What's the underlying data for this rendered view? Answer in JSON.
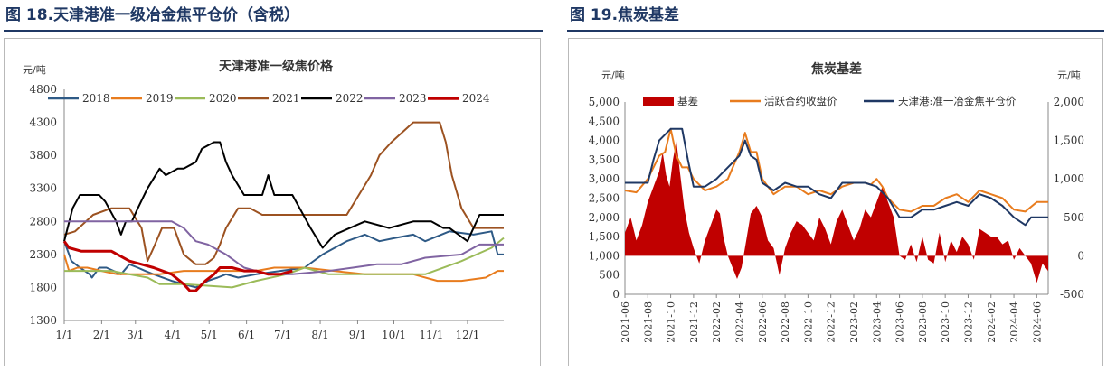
{
  "figure_left_title": "图 18.天津港准一级冶金焦平仓价（含税）",
  "figure_right_title": "图 19.焦炭基差",
  "chart_data": [
    {
      "type": "line",
      "title": "天津港准一级焦价格",
      "ylabel": "元/吨",
      "ylim": [
        1300,
        4800
      ],
      "yticks": [
        1300,
        1800,
        2300,
        2800,
        3300,
        3800,
        4300,
        4800
      ],
      "xticks": [
        "1/1",
        "2/1",
        "3/1",
        "4/1",
        "5/1",
        "6/1",
        "7/1",
        "8/1",
        "9/1",
        "10/1",
        "11/1",
        "12/1"
      ],
      "legend_position": "top",
      "series": [
        {
          "name": "2018",
          "color": "#2e5a86",
          "x": [
            1,
            7,
            14,
            18,
            22,
            24,
            30,
            36,
            42,
            48,
            55,
            62,
            68,
            75,
            90,
            100,
            110,
            120,
            128,
            135,
            145,
            160,
            180,
            200,
            215,
            235,
            250,
            262,
            275,
            290,
            300,
            320,
            340,
            355,
            360,
            365
          ],
          "y": [
            2500,
            2200,
            2100,
            2050,
            2000,
            1950,
            2100,
            2100,
            2050,
            2000,
            2150,
            2100,
            2050,
            2000,
            1900,
            1850,
            1800,
            1900,
            1950,
            2000,
            1950,
            2000,
            2050,
            2100,
            2300,
            2500,
            2600,
            2500,
            2550,
            2600,
            2500,
            2650,
            2600,
            2650,
            2300,
            2300
          ]
        },
        {
          "name": "2019",
          "color": "#e87c1e",
          "x": [
            1,
            5,
            12,
            20,
            32,
            45,
            60,
            80,
            100,
            120,
            140,
            160,
            175,
            200,
            250,
            290,
            310,
            330,
            350,
            360,
            365
          ],
          "y": [
            2300,
            2050,
            2100,
            2100,
            2050,
            2000,
            2000,
            2000,
            2050,
            2050,
            2050,
            2050,
            2100,
            2100,
            2000,
            2000,
            1900,
            1900,
            1950,
            2050,
            2050
          ]
        },
        {
          "name": "2020",
          "color": "#9bbb59",
          "x": [
            1,
            40,
            70,
            80,
            100,
            140,
            160,
            185,
            200,
            210,
            220,
            300,
            330,
            355,
            365
          ],
          "y": [
            2050,
            2050,
            1950,
            1850,
            1850,
            1800,
            1900,
            2000,
            2100,
            2050,
            2000,
            2000,
            2200,
            2400,
            2550
          ]
        },
        {
          "name": "2021",
          "color": "#9c5221",
          "x": [
            1,
            10,
            25,
            40,
            55,
            65,
            70,
            75,
            82,
            92,
            100,
            110,
            118,
            125,
            130,
            135,
            145,
            155,
            165,
            175,
            190,
            210,
            220,
            235,
            245,
            255,
            262,
            272,
            290,
            295,
            305,
            312,
            317,
            322,
            330,
            340,
            365
          ],
          "y": [
            2600,
            2650,
            2900,
            3000,
            3000,
            2700,
            2200,
            2400,
            2700,
            2700,
            2300,
            2150,
            2150,
            2250,
            2450,
            2700,
            3000,
            3000,
            2900,
            2900,
            2900,
            2900,
            2900,
            2900,
            3200,
            3500,
            3800,
            4000,
            4300,
            4300,
            4300,
            4300,
            4000,
            3500,
            3000,
            2700,
            2700
          ]
        },
        {
          "name": "2022",
          "color": "#000000",
          "x": [
            1,
            8,
            14,
            30,
            35,
            44,
            48,
            52,
            57,
            62,
            70,
            80,
            85,
            95,
            100,
            110,
            115,
            125,
            130,
            135,
            140,
            150,
            165,
            170,
            175,
            190,
            205,
            215,
            225,
            250,
            270,
            290,
            305,
            315,
            320,
            335,
            345,
            365
          ],
          "y": [
            2500,
            3000,
            3200,
            3200,
            3100,
            2800,
            2600,
            2800,
            2800,
            3000,
            3300,
            3600,
            3500,
            3600,
            3600,
            3700,
            3900,
            4000,
            4000,
            3700,
            3500,
            3200,
            3200,
            3500,
            3200,
            3200,
            2700,
            2400,
            2600,
            2800,
            2700,
            2800,
            2800,
            2700,
            2700,
            2500,
            2900,
            2900
          ]
        },
        {
          "name": "2023",
          "color": "#8064a2",
          "x": [
            1,
            30,
            60,
            90,
            100,
            110,
            120,
            135,
            150,
            170,
            190,
            220,
            240,
            260,
            280,
            300,
            330,
            345,
            365
          ],
          "y": [
            2800,
            2800,
            2800,
            2800,
            2700,
            2500,
            2450,
            2300,
            2100,
            2000,
            2000,
            2050,
            2100,
            2150,
            2150,
            2250,
            2300,
            2450,
            2450
          ]
        },
        {
          "name": "2024",
          "color": "#c00000",
          "x": [
            1,
            5,
            15,
            40,
            55,
            65,
            75,
            90,
            100,
            105,
            110,
            118,
            125,
            130,
            140,
            150,
            160,
            170,
            180,
            190
          ],
          "y": [
            2500,
            2400,
            2350,
            2350,
            2200,
            2150,
            2100,
            2000,
            1850,
            1750,
            1750,
            1900,
            2000,
            2100,
            2100,
            2050,
            2050,
            2000,
            2000,
            2050
          ]
        }
      ]
    },
    {
      "type": "area",
      "title": "焦炭基差",
      "ylabel": "元/吨",
      "y2label": "元/吨",
      "ylim": [
        0,
        5000
      ],
      "yticks": [
        0,
        500,
        1000,
        1500,
        2000,
        2500,
        3000,
        3500,
        4000,
        4500,
        5000
      ],
      "y2lim": [
        -500,
        2000
      ],
      "y2ticks": [
        -500,
        0,
        500,
        1000,
        1500,
        2000
      ],
      "xticks": [
        "2021-06",
        "2021-08",
        "2021-10",
        "2021-12",
        "2022-02",
        "2022-04",
        "2022-06",
        "2022-08",
        "2022-10",
        "2022-12",
        "2023-02",
        "2023-04",
        "2023-06",
        "2023-08",
        "2023-10",
        "2023-12",
        "2024-02",
        "2024-04",
        "2024-06"
      ],
      "legend_position": "top",
      "series": [
        {
          "name": "基差",
          "axis": "right",
          "kind": "area",
          "color": "#c00000",
          "x": [
            0,
            0.5,
            1,
            1.5,
            2,
            2.5,
            3,
            3.3,
            3.6,
            3.9,
            4.2,
            4.5,
            4.8,
            5.2,
            5.6,
            6,
            6.5,
            7,
            7.5,
            8,
            8.3,
            8.6,
            9,
            9.4,
            9.8,
            10.2,
            10.6,
            11,
            11.5,
            12,
            12.5,
            13,
            13.5,
            14,
            14.5,
            15,
            15.5,
            16,
            16.5,
            17,
            17.5,
            18,
            18.5,
            19,
            19.5,
            20,
            20.5,
            21,
            21.5,
            22,
            22.5,
            23,
            23.5,
            24,
            24.5,
            25,
            25.5,
            26,
            26.5,
            27,
            27.5,
            28,
            28.5,
            29,
            29.5,
            30,
            30.5,
            31,
            31.5,
            32,
            32.5,
            33,
            33.5,
            34,
            34.5,
            35,
            35.5,
            36,
            36.5,
            37
          ],
          "y": [
            300,
            500,
            200,
            400,
            700,
            900,
            1100,
            1350,
            1050,
            900,
            1250,
            1500,
            1100,
            600,
            300,
            100,
            -100,
            200,
            400,
            600,
            550,
            250,
            0,
            -150,
            -300,
            -150,
            200,
            550,
            650,
            500,
            200,
            100,
            -250,
            100,
            300,
            450,
            400,
            300,
            200,
            500,
            350,
            150,
            450,
            600,
            400,
            200,
            350,
            600,
            500,
            700,
            900,
            700,
            500,
            0,
            -50,
            150,
            -80,
            250,
            -50,
            -100,
            300,
            -80,
            200,
            50,
            250,
            150,
            -50,
            350,
            300,
            250,
            250,
            150,
            200,
            -50,
            100,
            0,
            -100,
            -350,
            -100,
            -200
          ]
        },
        {
          "name": "活跃合约收盘价",
          "axis": "left",
          "kind": "line",
          "color": "#e87c1e",
          "x": [
            0,
            1,
            2,
            3,
            3.5,
            4,
            4.5,
            5,
            5.5,
            6,
            7,
            8,
            9,
            10,
            10.5,
            11,
            11.5,
            12,
            13,
            14,
            15,
            16,
            17,
            18,
            19,
            20,
            21,
            21.5,
            22,
            22.5,
            23,
            24,
            25,
            26,
            27,
            28,
            29,
            30,
            31,
            32,
            33,
            34,
            35,
            36,
            37
          ],
          "y": [
            2700,
            2650,
            3000,
            3600,
            3700,
            4300,
            3600,
            3300,
            3300,
            3000,
            2700,
            2800,
            3000,
            3700,
            4200,
            3700,
            3700,
            3000,
            2600,
            2800,
            2800,
            2600,
            2700,
            2600,
            2800,
            2900,
            2900,
            2850,
            3000,
            2800,
            2500,
            2200,
            2150,
            2300,
            2300,
            2500,
            2600,
            2400,
            2700,
            2600,
            2500,
            2200,
            2150,
            2400,
            2400
          ]
        },
        {
          "name": "天津港:准一冶金焦平仓价",
          "axis": "left",
          "kind": "line",
          "color": "#1f3864",
          "x": [
            0,
            2,
            2.5,
            3,
            4,
            5,
            5.5,
            6,
            7,
            8,
            9,
            10,
            10.5,
            11,
            11.5,
            12,
            13,
            14,
            15,
            16,
            17,
            18,
            19,
            20,
            21,
            22,
            23,
            24,
            25,
            26,
            27,
            28,
            29,
            30,
            31,
            32,
            33,
            34,
            35,
            35.5,
            36,
            37
          ],
          "y": [
            2900,
            2900,
            3500,
            4000,
            4300,
            4300,
            3500,
            2800,
            2800,
            3000,
            3300,
            3600,
            4000,
            3600,
            3500,
            2900,
            2700,
            2900,
            2800,
            2800,
            2600,
            2500,
            2900,
            2900,
            2900,
            2800,
            2500,
            2000,
            2000,
            2200,
            2200,
            2300,
            2400,
            2300,
            2600,
            2500,
            2300,
            2000,
            1800,
            2000,
            2000,
            2000
          ]
        }
      ]
    }
  ]
}
